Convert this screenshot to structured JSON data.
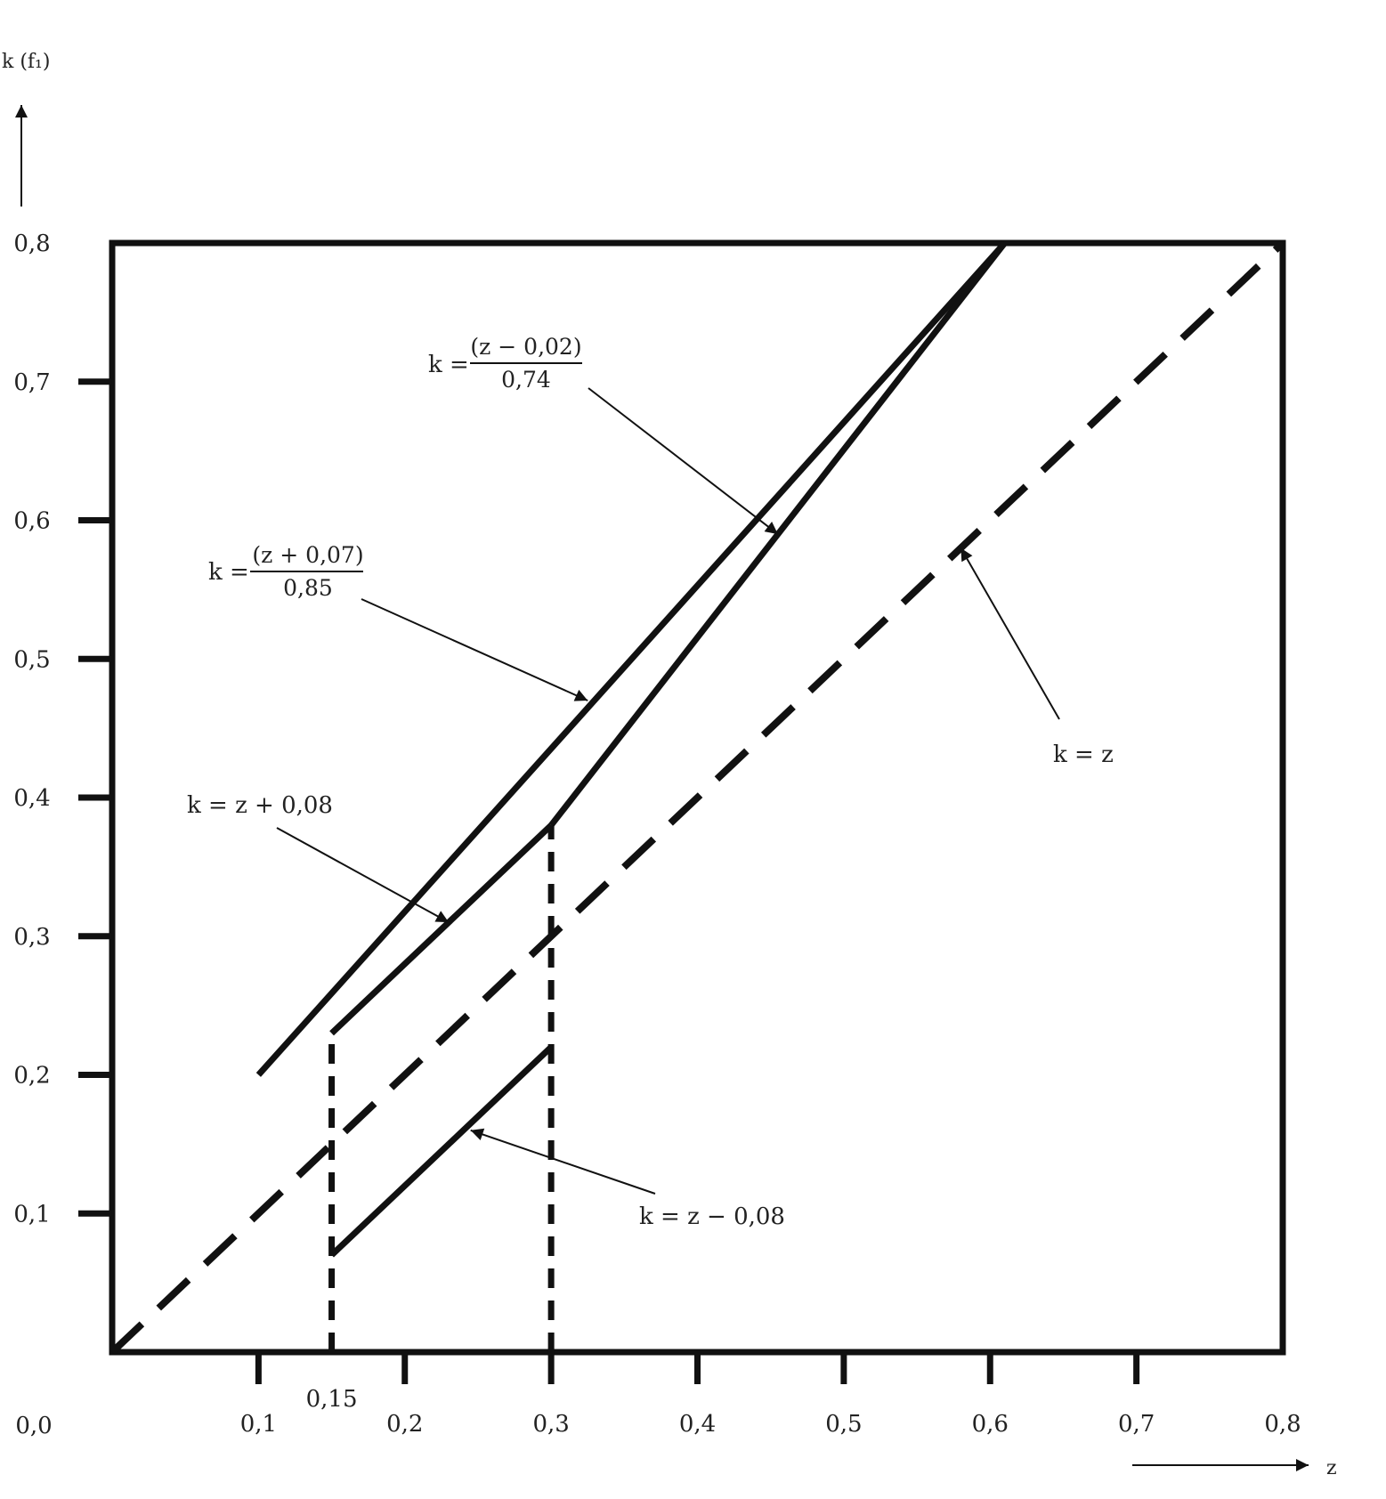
{
  "chart_data": {
    "type": "line",
    "title": "",
    "xlabel": "z",
    "ylabel": "k (f₁)",
    "xlim": [
      0,
      0.8
    ],
    "ylim": [
      0,
      0.8
    ],
    "grid": false,
    "x_ticks": [
      {
        "value": 0.1,
        "label": "0,1"
      },
      {
        "value": 0.15,
        "label": "0,15"
      },
      {
        "value": 0.2,
        "label": "0,2"
      },
      {
        "value": 0.3,
        "label": "0,3"
      },
      {
        "value": 0.4,
        "label": "0,4"
      },
      {
        "value": 0.5,
        "label": "0,5"
      },
      {
        "value": 0.6,
        "label": "0,6"
      },
      {
        "value": 0.7,
        "label": "0,7"
      },
      {
        "value": 0.8,
        "label": "0,8"
      }
    ],
    "y_ticks": [
      {
        "value": 0.1,
        "label": "0,1"
      },
      {
        "value": 0.2,
        "label": "0,2"
      },
      {
        "value": 0.3,
        "label": "0,3"
      },
      {
        "value": 0.4,
        "label": "0,4"
      },
      {
        "value": 0.5,
        "label": "0,5"
      },
      {
        "value": 0.6,
        "label": "0,6"
      },
      {
        "value": 0.7,
        "label": "0,7"
      },
      {
        "value": 0.8,
        "label": "0,8"
      }
    ],
    "origin_label": "0,0",
    "series": [
      {
        "name": "k = z",
        "style": "dashed",
        "x": [
          0,
          0.8
        ],
        "y": [
          0,
          0.8
        ]
      },
      {
        "name": "k = (z + 0,07) / 0,85",
        "style": "solid",
        "x": [
          0.1,
          0.61
        ],
        "y": [
          0.2,
          0.8
        ]
      },
      {
        "name": "k = (z − 0,02) / 0,74",
        "style": "solid",
        "x": [
          0.3,
          0.61
        ],
        "y": [
          0.38,
          0.8
        ]
      },
      {
        "name": "k = z + 0,08",
        "style": "solid",
        "x": [
          0.15,
          0.3
        ],
        "y": [
          0.23,
          0.38
        ]
      },
      {
        "name": "k = z − 0,08",
        "style": "solid",
        "x": [
          0.15,
          0.3
        ],
        "y": [
          0.07,
          0.22
        ]
      },
      {
        "name": "",
        "style": "dotted-vertical",
        "x": [
          0.15,
          0.15
        ],
        "y": [
          0,
          0.23
        ]
      },
      {
        "name": "",
        "style": "dotted-vertical",
        "x": [
          0.3,
          0.3
        ],
        "y": [
          0,
          0.38
        ]
      }
    ],
    "annotations": {
      "k_eq_z": {
        "text": "k = z",
        "target": [
          0.58,
          0.58
        ]
      },
      "k_upper": {
        "prefix": "k =",
        "numerator": "(z + 0,07)",
        "denominator": "0,85",
        "target": [
          0.325,
          0.47
        ]
      },
      "k_lower_frac": {
        "prefix": "k =",
        "numerator": "(z − 0,02)",
        "denominator": "0,74",
        "target": [
          0.455,
          0.59
        ]
      },
      "k_plus": {
        "text": "k = z + 0,08",
        "target": [
          0.23,
          0.31
        ]
      },
      "k_minus": {
        "text": "k = z − 0,08",
        "target": [
          0.245,
          0.16
        ]
      }
    }
  }
}
